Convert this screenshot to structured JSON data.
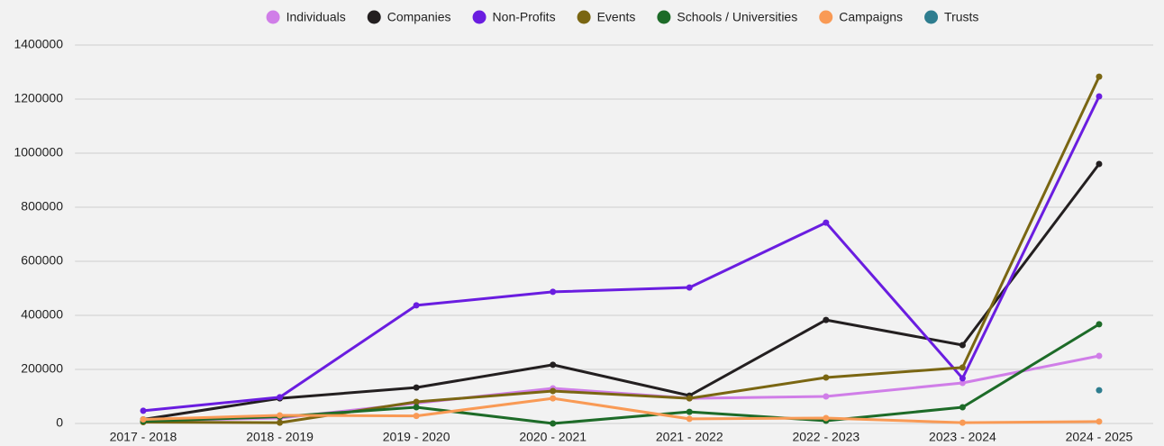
{
  "chart_data": {
    "type": "line",
    "categories": [
      "2017 - 2018",
      "2018 - 2019",
      "2019 - 2020",
      "2020 - 2021",
      "2021 - 2022",
      "2022 - 2023",
      "2023 - 2024",
      "2024 - 2025"
    ],
    "series": [
      {
        "name": "Individuals",
        "color": "#d07ee8",
        "values": [
          10000,
          20000,
          75000,
          130000,
          93000,
          100000,
          150000,
          250000
        ]
      },
      {
        "name": "Companies",
        "color": "#231f20",
        "values": [
          15000,
          93000,
          133000,
          217000,
          103000,
          383000,
          290000,
          960000
        ]
      },
      {
        "name": "Non-Profits",
        "color": "#6a1de0",
        "values": [
          47000,
          97000,
          437000,
          487000,
          503000,
          743000,
          167000,
          1210000
        ]
      },
      {
        "name": "Events",
        "color": "#7a6612",
        "values": [
          5000,
          3000,
          80000,
          120000,
          93000,
          170000,
          207000,
          1283000
        ]
      },
      {
        "name": "Schools / Universities",
        "color": "#1d6b28",
        "values": [
          8000,
          25000,
          60000,
          0,
          43000,
          10000,
          60000,
          367000
        ]
      },
      {
        "name": "Campaigns",
        "color": "#f99a55",
        "values": [
          15000,
          30000,
          28000,
          93000,
          17000,
          20000,
          3000,
          7000
        ]
      },
      {
        "name": "Trusts",
        "color": "#2e7d8f",
        "values": [
          null,
          null,
          null,
          null,
          null,
          null,
          null,
          123000
        ]
      }
    ],
    "ylim": [
      0,
      1400000
    ],
    "yticks": [
      0,
      200000,
      400000,
      600000,
      800000,
      1000000,
      1200000,
      1400000
    ],
    "grid": true,
    "legend": "top"
  }
}
